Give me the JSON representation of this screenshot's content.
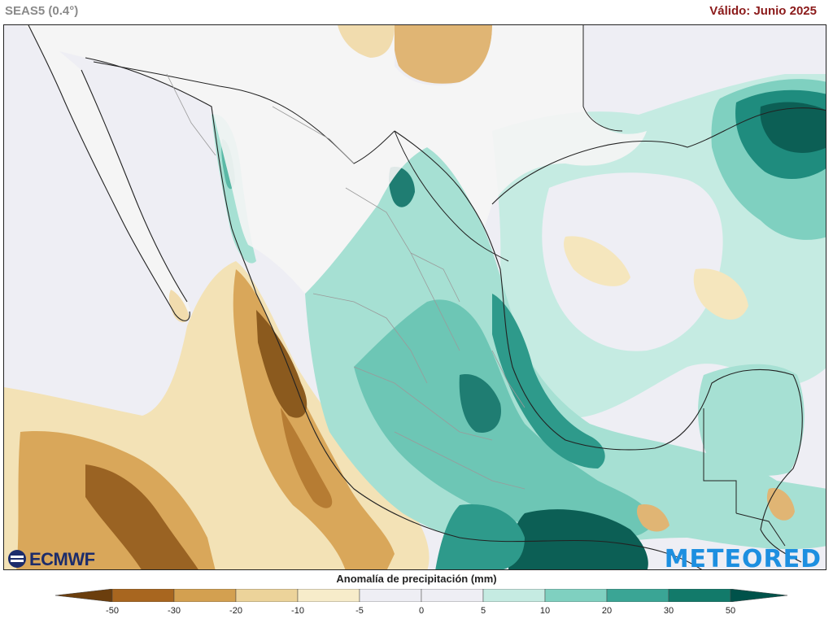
{
  "header": {
    "model_label": "SEAS5 (0.4°)",
    "valid_label": "Válido: Junio 2025"
  },
  "logos": {
    "left": "ECMWF",
    "right": "METEORED"
  },
  "legend": {
    "title": "Anomalía de precipitación (mm)",
    "ticks": [
      "-50",
      "-30",
      "-20",
      "-10",
      "-5",
      "0",
      "5",
      "10",
      "20",
      "30",
      "50"
    ],
    "bins": [
      {
        "color": "#6b3e0d"
      },
      {
        "color": "#a8661f"
      },
      {
        "color": "#d3a050"
      },
      {
        "color": "#ecd39a"
      },
      {
        "color": "#f7ecca"
      },
      {
        "color": "#eeeef4"
      },
      {
        "color": "#eeeef4"
      },
      {
        "color": "#c5ebe2"
      },
      {
        "color": "#7fd0c0"
      },
      {
        "color": "#3aa595"
      },
      {
        "color": "#127a6a"
      },
      {
        "color": "#00524a"
      }
    ]
  },
  "colors": {
    "dry_strong": "#8b5a1e",
    "dry_medium": "#c9903e",
    "dry_light": "#ecd39a",
    "neutral": "#eeeef4",
    "wet_light": "#c5ebe2",
    "wet_medium": "#7fd0c0",
    "wet_strong": "#1f8c7e",
    "wet_very_strong": "#0c5f55",
    "land": "#f4f4f4",
    "borders": "#222222"
  }
}
